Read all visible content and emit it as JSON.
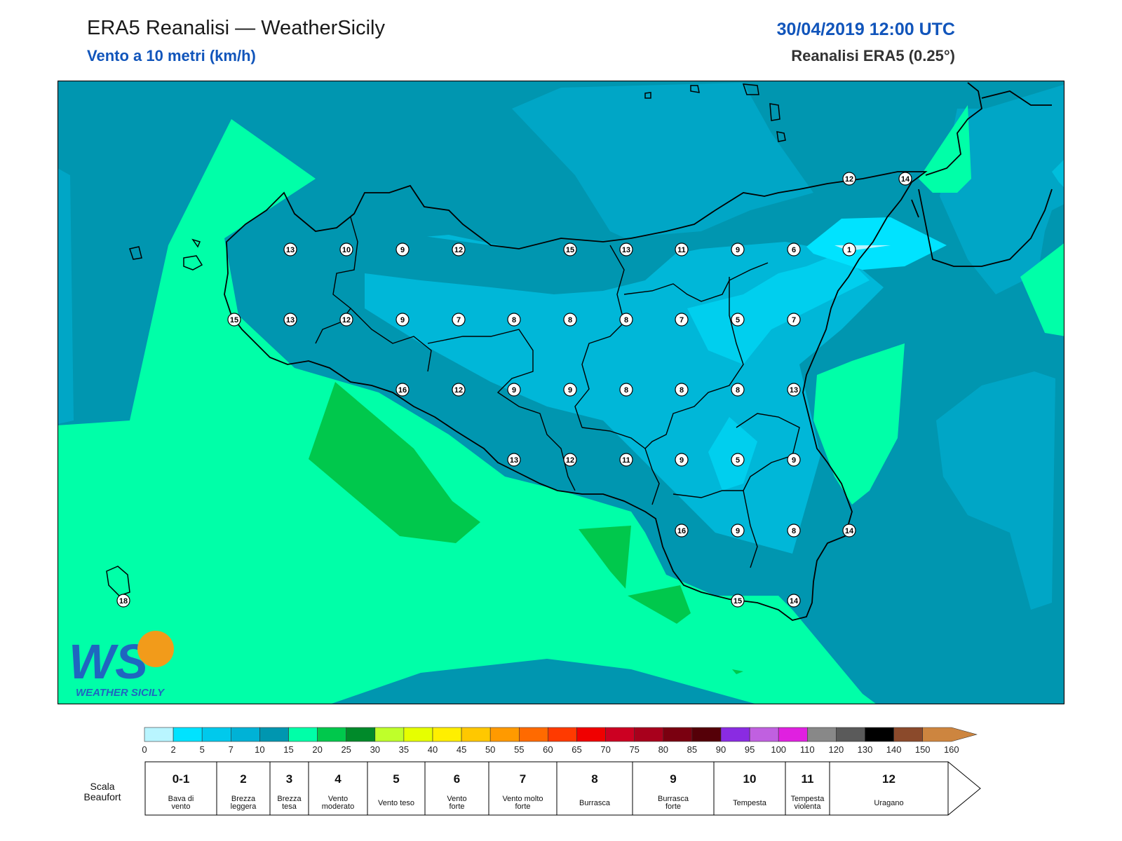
{
  "header": {
    "title": "ERA5 Reanalisi — WeatherSicily",
    "subtitle": "Vento a 10 metri (km/h)",
    "datetime": "30/04/2019 12:00 UTC",
    "model": "Reanalisi ERA5 (0.25°)"
  },
  "logo": {
    "text": "WEATHER SICILY",
    "letters": "WS"
  },
  "colors": {
    "sea_low": "#00a6c6",
    "sea_mid": "#0096b0",
    "green_light": "#00ffa8",
    "green_dark": "#00c84c",
    "cyan": "#00cfee",
    "cyan_bright": "#00e6ff",
    "land_mid": "#00b7d8",
    "coast": "#000000"
  },
  "stations": [
    {
      "v": "13"
    },
    {
      "v": "10"
    },
    {
      "v": "9"
    },
    {
      "v": "12"
    },
    {
      "v": "15"
    },
    {
      "v": "13"
    },
    {
      "v": "11"
    },
    {
      "v": "9"
    },
    {
      "v": "6"
    },
    {
      "v": "1"
    },
    {
      "v": "15"
    },
    {
      "v": "13"
    },
    {
      "v": "12"
    },
    {
      "v": "9"
    },
    {
      "v": "7"
    },
    {
      "v": "8"
    },
    {
      "v": "8"
    },
    {
      "v": "8"
    },
    {
      "v": "7"
    },
    {
      "v": "5"
    },
    {
      "v": "7"
    },
    {
      "v": "16"
    },
    {
      "v": "12"
    },
    {
      "v": "9"
    },
    {
      "v": "9"
    },
    {
      "v": "8"
    },
    {
      "v": "8"
    },
    {
      "v": "8"
    },
    {
      "v": "13"
    },
    {
      "v": "13"
    },
    {
      "v": "12"
    },
    {
      "v": "11"
    },
    {
      "v": "9"
    },
    {
      "v": "5"
    },
    {
      "v": "9"
    },
    {
      "v": "16"
    },
    {
      "v": "9"
    },
    {
      "v": "8"
    },
    {
      "v": "14"
    },
    {
      "v": "15"
    },
    {
      "v": "14"
    },
    {
      "v": "12"
    },
    {
      "v": "14"
    },
    {
      "v": "18"
    }
  ],
  "colorbar": {
    "ticks": [
      "0",
      "2",
      "5",
      "7",
      "10",
      "15",
      "20",
      "25",
      "30",
      "35",
      "40",
      "45",
      "50",
      "55",
      "60",
      "65",
      "70",
      "75",
      "80",
      "85",
      "90",
      "95",
      "100",
      "110",
      "120",
      "130",
      "140",
      "150",
      "160"
    ],
    "colors": [
      "#b9f5ff",
      "#00e3ff",
      "#00c9ec",
      "#00b2d6",
      "#0096b0",
      "#00ffa8",
      "#00c84c",
      "#008a2a",
      "#bfff2a",
      "#e6ff00",
      "#ffef00",
      "#ffc800",
      "#ff9a00",
      "#ff6a00",
      "#ff3a00",
      "#f00000",
      "#cc0022",
      "#a8001c",
      "#7a0010",
      "#550008",
      "#8a2be2",
      "#c060e0",
      "#e020e0",
      "#888888",
      "#5a5a5a",
      "#000000",
      "#8b4a2b",
      "#cd853f"
    ]
  },
  "beaufort": {
    "label": "Scala Beaufort",
    "label_line1": "Scala",
    "label_line2": "Beaufort",
    "levels": [
      {
        "n": "0-1",
        "d1": "Bava di",
        "d2": "vento"
      },
      {
        "n": "2",
        "d1": "Brezza",
        "d2": "leggera"
      },
      {
        "n": "3",
        "d1": "Brezza",
        "d2": "tesa"
      },
      {
        "n": "4",
        "d1": "Vento",
        "d2": "moderato"
      },
      {
        "n": "5",
        "d1": "Vento teso",
        "d2": ""
      },
      {
        "n": "6",
        "d1": "Vento",
        "d2": "forte"
      },
      {
        "n": "7",
        "d1": "Vento molto",
        "d2": "forte"
      },
      {
        "n": "8",
        "d1": "Burrasca",
        "d2": ""
      },
      {
        "n": "9",
        "d1": "Burrasca",
        "d2": "forte"
      },
      {
        "n": "10",
        "d1": "Tempesta",
        "d2": ""
      },
      {
        "n": "11",
        "d1": "Tempesta",
        "d2": "violenta"
      },
      {
        "n": "12",
        "d1": "Uragano",
        "d2": ""
      }
    ]
  }
}
